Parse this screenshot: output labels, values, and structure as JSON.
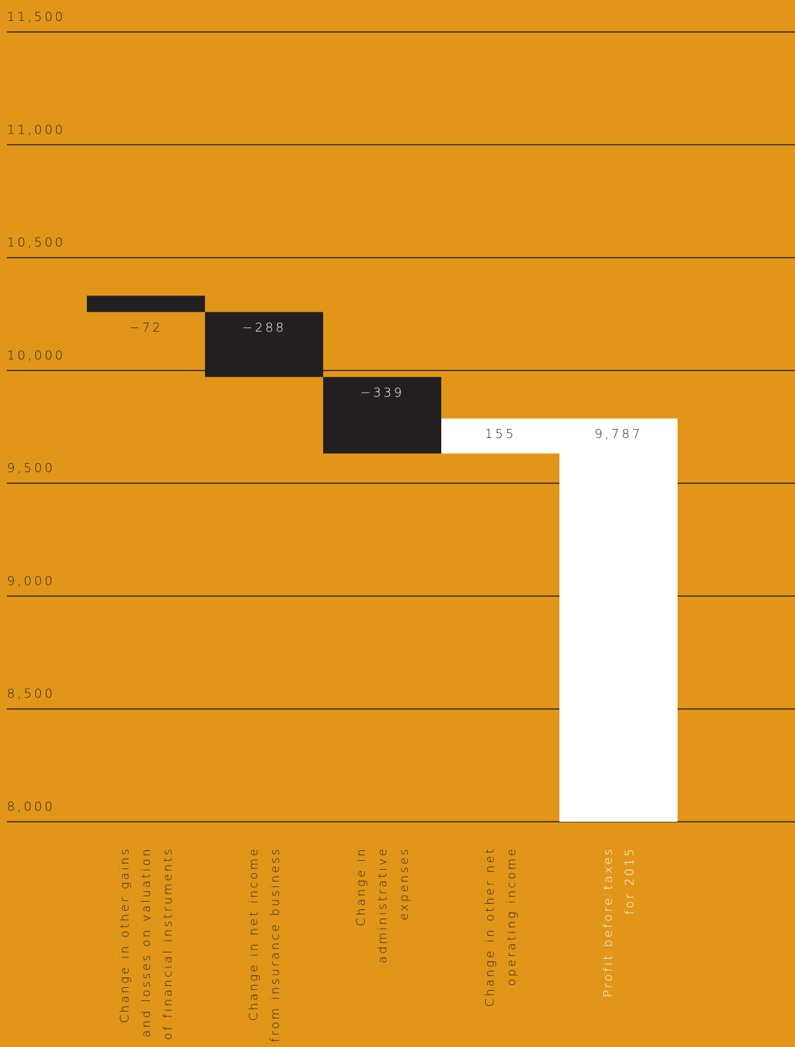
{
  "chart_data": {
    "type": "waterfall",
    "categories": [
      [
        "Change in other gains",
        "and losses on valuation",
        "of financial instruments"
      ],
      [
        "Change in net income",
        "from insurance business"
      ],
      [
        "Change in",
        "administrative",
        "expenses"
      ],
      [
        "Change in other net",
        "operating income"
      ],
      [
        "Profit before taxes",
        "for 2015"
      ]
    ],
    "values": [
      -72,
      -288,
      -339,
      155,
      9787
    ],
    "value_labels": [
      "−72",
      "−288",
      "−339",
      "155",
      "9,787"
    ],
    "colors": {
      "decrease": "#231f20",
      "increase": "#ffffff",
      "total": "#ffffff",
      "background": "#e1961a",
      "grid": "#231f20"
    },
    "ylim": [
      8000,
      11500
    ],
    "yticks": [
      {
        "value": 8000,
        "label": "8,000"
      },
      {
        "value": 8500,
        "label": "8,500"
      },
      {
        "value": 9000,
        "label": "9,000"
      },
      {
        "value": 9500,
        "label": "9,500"
      },
      {
        "value": 10000,
        "label": "10,000"
      },
      {
        "value": 10500,
        "label": "10,500"
      },
      {
        "value": 11000,
        "label": "11,000"
      },
      {
        "value": 11500,
        "label": "11,500"
      }
    ],
    "grid": true
  }
}
